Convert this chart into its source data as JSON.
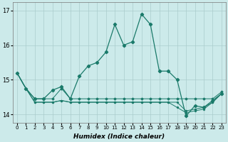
{
  "xlabel": "Humidex (Indice chaleur)",
  "background_color": "#cceaea",
  "grid_color": "#aacccc",
  "line_color": "#1a7a6a",
  "xlim": [
    -0.5,
    23.5
  ],
  "ylim": [
    13.75,
    17.25
  ],
  "yticks": [
    14,
    15,
    16,
    17
  ],
  "xtick_labels": [
    "0",
    "1",
    "2",
    "3",
    "4",
    "5",
    "6",
    "7",
    "8",
    "9",
    "10",
    "11",
    "12",
    "13",
    "14",
    "15",
    "16",
    "17",
    "18",
    "19",
    "20",
    "21",
    "22",
    "23"
  ],
  "series1": [
    15.2,
    14.75,
    14.45,
    14.45,
    14.45,
    14.75,
    14.45,
    14.45,
    14.45,
    14.45,
    14.45,
    14.45,
    14.45,
    14.45,
    14.45,
    14.45,
    14.45,
    14.45,
    14.45,
    14.45,
    14.45,
    14.45,
    14.45,
    14.65
  ],
  "series2": [
    15.2,
    14.75,
    14.35,
    14.35,
    14.35,
    14.4,
    14.35,
    14.35,
    14.35,
    14.35,
    14.35,
    14.35,
    14.35,
    14.35,
    14.35,
    14.35,
    14.35,
    14.35,
    14.35,
    14.1,
    14.15,
    14.2,
    14.35,
    14.6
  ],
  "series3": [
    15.2,
    14.75,
    14.35,
    14.35,
    14.35,
    14.4,
    14.35,
    14.35,
    14.35,
    14.35,
    14.35,
    14.35,
    14.35,
    14.35,
    14.35,
    14.35,
    14.35,
    14.35,
    14.2,
    14.05,
    14.1,
    14.15,
    14.35,
    14.6
  ],
  "series4_main": [
    15.2,
    14.75,
    14.45,
    14.45,
    14.7,
    14.8,
    14.45,
    15.1,
    15.4,
    15.5,
    15.8,
    16.6,
    16.0,
    16.1,
    16.9,
    16.6,
    15.25,
    15.25,
    15.0,
    13.95,
    14.25,
    14.2,
    14.4,
    14.6
  ]
}
